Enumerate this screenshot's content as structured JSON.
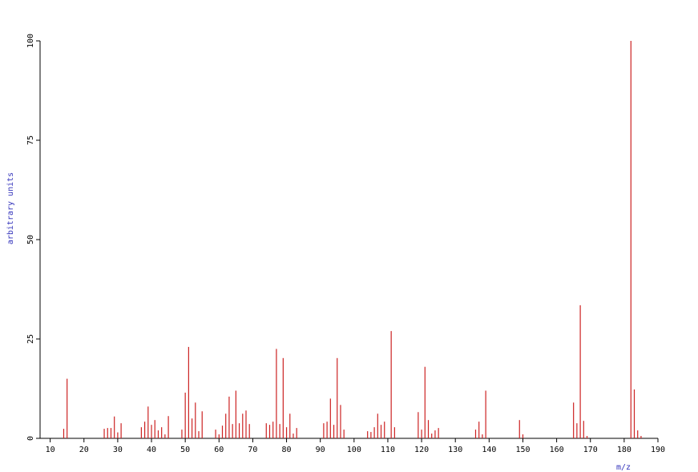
{
  "chart_data": {
    "type": "stem",
    "xlabel": "m/z",
    "ylabel": "arbitrary units",
    "x": [
      14,
      15,
      26,
      27,
      28,
      29,
      30,
      31,
      37,
      38,
      39,
      40,
      41,
      42,
      43,
      44,
      45,
      49,
      50,
      51,
      52,
      53,
      54,
      55,
      59,
      60,
      61,
      62,
      63,
      64,
      65,
      66,
      67,
      68,
      69,
      74,
      75,
      76,
      77,
      78,
      79,
      80,
      81,
      82,
      83,
      91,
      92,
      93,
      94,
      95,
      96,
      97,
      104,
      105,
      106,
      107,
      108,
      109,
      111,
      112,
      119,
      120,
      121,
      122,
      123,
      124,
      125,
      136,
      137,
      138,
      139,
      149,
      150,
      165,
      166,
      167,
      168,
      169,
      182,
      183,
      184,
      185
    ],
    "values": [
      2.4,
      15,
      2.4,
      2.6,
      2.6,
      5.5,
      1.5,
      3.8,
      2.8,
      4.2,
      8,
      3.4,
      4.6,
      2,
      2.8,
      1,
      5.6,
      2.2,
      11.5,
      23,
      5,
      9,
      1.8,
      6.8,
      2.2,
      1,
      3.2,
      6.2,
      10.5,
      3.6,
      12,
      3.8,
      6.2,
      7,
      3.6,
      3.8,
      3.4,
      4.2,
      22.5,
      3.6,
      20.2,
      2.8,
      6.2,
      1.2,
      2.6,
      3.8,
      4.2,
      10,
      3.4,
      20.2,
      8.4,
      2.2,
      1.8,
      1.6,
      2.8,
      6.2,
      3.4,
      4.2,
      27,
      2.8,
      6.6,
      2.2,
      18,
      4.6,
      1.2,
      2,
      2.6,
      2.2,
      4.2,
      1,
      12,
      4.6,
      1,
      9,
      3.8,
      33.5,
      4.4,
      0.6,
      100,
      12.3,
      2,
      0.6
    ],
    "color": "#cc2222",
    "label_color": "#3333bb",
    "xlim": [
      7,
      190
    ],
    "ylim": [
      0,
      100
    ],
    "xticks": [
      10,
      20,
      30,
      40,
      50,
      60,
      70,
      80,
      90,
      100,
      110,
      120,
      130,
      140,
      150,
      160,
      170,
      180,
      190
    ],
    "yticks": [
      0,
      25,
      50,
      75,
      100
    ]
  }
}
